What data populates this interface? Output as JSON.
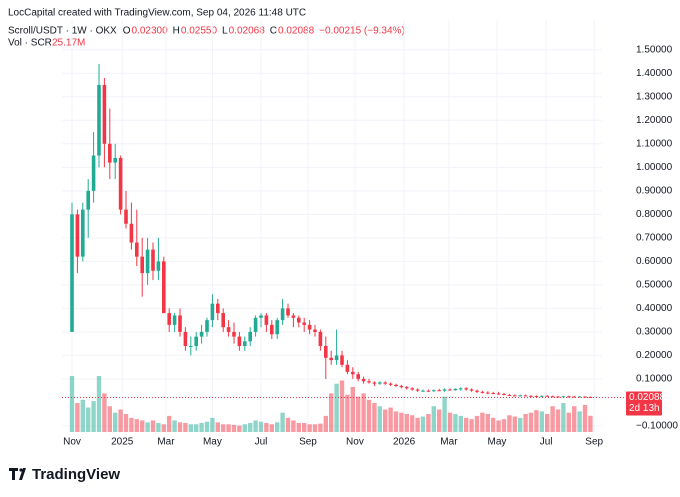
{
  "header": {
    "credit": "LocCapital created with TradingView.com, Sep 04, 2026 11:48 UTC",
    "symbol": "Scroll/USDT · 1W · OKX",
    "ohlc": [
      {
        "label": "O",
        "value": "0.02300"
      },
      {
        "label": "H",
        "value": "0.02550"
      },
      {
        "label": "L",
        "value": "0.02068"
      },
      {
        "label": "C",
        "value": "0.02088"
      }
    ],
    "change": "−0.00215 (−9.34%)",
    "volume_label": "Vol · SCR",
    "volume_value": "25.17M"
  },
  "chart_data": {
    "type": "candlestick",
    "up_color": "#22ab94",
    "down_color": "#f23645",
    "ohlc": [
      [
        0.3,
        0.85,
        0.3,
        0.8
      ],
      [
        0.8,
        0.82,
        0.55,
        0.62
      ],
      [
        0.62,
        0.85,
        0.6,
        0.82
      ],
      [
        0.82,
        0.95,
        0.7,
        0.9
      ],
      [
        0.9,
        1.15,
        0.85,
        1.05
      ],
      [
        1.05,
        1.44,
        1.0,
        1.35
      ],
      [
        1.35,
        1.38,
        1.0,
        1.1
      ],
      [
        1.1,
        1.25,
        0.95,
        1.02
      ],
      [
        1.02,
        1.1,
        0.95,
        1.04
      ],
      [
        1.04,
        1.05,
        0.8,
        0.82
      ],
      [
        0.82,
        0.9,
        0.74,
        0.76
      ],
      [
        0.76,
        0.85,
        0.65,
        0.68
      ],
      [
        0.68,
        0.82,
        0.58,
        0.62
      ],
      [
        0.62,
        0.7,
        0.45,
        0.55
      ],
      [
        0.55,
        0.7,
        0.5,
        0.65
      ],
      [
        0.65,
        0.68,
        0.52,
        0.56
      ],
      [
        0.56,
        0.7,
        0.52,
        0.6
      ],
      [
        0.6,
        0.62,
        0.38,
        0.38
      ],
      [
        0.38,
        0.4,
        0.3,
        0.33
      ],
      [
        0.33,
        0.38,
        0.3,
        0.37
      ],
      [
        0.37,
        0.4,
        0.28,
        0.3
      ],
      [
        0.3,
        0.32,
        0.22,
        0.24
      ],
      [
        0.24,
        0.28,
        0.2,
        0.24
      ],
      [
        0.24,
        0.3,
        0.22,
        0.28
      ],
      [
        0.28,
        0.33,
        0.25,
        0.3
      ],
      [
        0.3,
        0.36,
        0.28,
        0.35
      ],
      [
        0.35,
        0.46,
        0.32,
        0.42
      ],
      [
        0.42,
        0.44,
        0.35,
        0.38
      ],
      [
        0.38,
        0.4,
        0.3,
        0.32
      ],
      [
        0.32,
        0.35,
        0.28,
        0.3
      ],
      [
        0.3,
        0.34,
        0.25,
        0.28
      ],
      [
        0.28,
        0.3,
        0.22,
        0.24
      ],
      [
        0.24,
        0.28,
        0.22,
        0.26
      ],
      [
        0.26,
        0.32,
        0.24,
        0.3
      ],
      [
        0.3,
        0.37,
        0.28,
        0.36
      ],
      [
        0.36,
        0.38,
        0.32,
        0.37
      ],
      [
        0.37,
        0.38,
        0.3,
        0.33
      ],
      [
        0.33,
        0.35,
        0.27,
        0.29
      ],
      [
        0.29,
        0.36,
        0.27,
        0.35
      ],
      [
        0.35,
        0.44,
        0.33,
        0.4
      ],
      [
        0.4,
        0.42,
        0.36,
        0.37
      ],
      [
        0.37,
        0.38,
        0.32,
        0.36
      ],
      [
        0.36,
        0.37,
        0.32,
        0.34
      ],
      [
        0.34,
        0.36,
        0.3,
        0.33
      ],
      [
        0.33,
        0.35,
        0.29,
        0.31
      ],
      [
        0.31,
        0.33,
        0.28,
        0.3
      ],
      [
        0.3,
        0.31,
        0.22,
        0.24
      ],
      [
        0.24,
        0.28,
        0.1,
        0.19
      ],
      [
        0.19,
        0.22,
        0.16,
        0.18
      ],
      [
        0.18,
        0.31,
        0.16,
        0.2
      ],
      [
        0.2,
        0.22,
        0.15,
        0.16
      ],
      [
        0.16,
        0.18,
        0.12,
        0.13
      ],
      [
        0.13,
        0.15,
        0.1,
        0.12
      ],
      [
        0.12,
        0.13,
        0.09,
        0.1
      ],
      [
        0.1,
        0.11,
        0.08,
        0.09
      ],
      [
        0.09,
        0.1,
        0.08,
        0.085
      ],
      [
        0.085,
        0.09,
        0.07,
        0.08
      ],
      [
        0.08,
        0.09,
        0.075,
        0.085
      ],
      [
        0.085,
        0.09,
        0.075,
        0.08
      ],
      [
        0.08,
        0.085,
        0.07,
        0.075
      ],
      [
        0.075,
        0.08,
        0.065,
        0.07
      ],
      [
        0.07,
        0.075,
        0.06,
        0.065
      ],
      [
        0.065,
        0.07,
        0.055,
        0.06
      ],
      [
        0.06,
        0.065,
        0.05,
        0.055
      ],
      [
        0.055,
        0.06,
        0.045,
        0.05
      ],
      [
        0.05,
        0.055,
        0.045,
        0.05
      ],
      [
        0.05,
        0.055,
        0.045,
        0.048
      ],
      [
        0.048,
        0.055,
        0.045,
        0.052
      ],
      [
        0.052,
        0.058,
        0.048,
        0.05
      ],
      [
        0.05,
        0.06,
        0.045,
        0.055
      ],
      [
        0.055,
        0.06,
        0.05,
        0.052
      ],
      [
        0.052,
        0.06,
        0.05,
        0.058
      ],
      [
        0.058,
        0.065,
        0.05,
        0.06
      ],
      [
        0.06,
        0.065,
        0.05,
        0.055
      ],
      [
        0.055,
        0.06,
        0.045,
        0.05
      ],
      [
        0.05,
        0.055,
        0.04,
        0.045
      ],
      [
        0.045,
        0.05,
        0.038,
        0.042
      ],
      [
        0.042,
        0.048,
        0.035,
        0.04
      ],
      [
        0.04,
        0.045,
        0.035,
        0.038
      ],
      [
        0.038,
        0.045,
        0.032,
        0.036
      ],
      [
        0.036,
        0.04,
        0.03,
        0.032
      ],
      [
        0.032,
        0.036,
        0.028,
        0.03
      ],
      [
        0.03,
        0.034,
        0.027,
        0.029
      ],
      [
        0.029,
        0.033,
        0.026,
        0.03
      ],
      [
        0.03,
        0.034,
        0.027,
        0.028
      ],
      [
        0.028,
        0.031,
        0.025,
        0.027
      ],
      [
        0.027,
        0.03,
        0.024,
        0.026
      ],
      [
        0.026,
        0.03,
        0.024,
        0.028
      ],
      [
        0.028,
        0.031,
        0.025,
        0.026
      ],
      [
        0.026,
        0.029,
        0.023,
        0.025
      ],
      [
        0.025,
        0.028,
        0.023,
        0.024
      ],
      [
        0.024,
        0.028,
        0.022,
        0.026
      ],
      [
        0.026,
        0.029,
        0.023,
        0.025
      ],
      [
        0.025,
        0.028,
        0.022,
        0.024
      ],
      [
        0.024,
        0.027,
        0.022,
        0.025
      ],
      [
        0.025,
        0.027,
        0.021,
        0.023
      ],
      [
        0.023,
        0.0255,
        0.02068,
        0.02088
      ]
    ],
    "volume": [
      87,
      45,
      50,
      38,
      48,
      87,
      60,
      40,
      30,
      35,
      28,
      22,
      20,
      18,
      15,
      18,
      14,
      12,
      25,
      18,
      15,
      14,
      12,
      12,
      14,
      16,
      22,
      15,
      12,
      12,
      11,
      10,
      12,
      14,
      18,
      16,
      14,
      12,
      15,
      30,
      22,
      18,
      14,
      14,
      12,
      12,
      13,
      25,
      60,
      75,
      80,
      58,
      70,
      55,
      60,
      50,
      45,
      40,
      35,
      38,
      32,
      30,
      28,
      26,
      22,
      24,
      28,
      40,
      35,
      55,
      30,
      28,
      25,
      22,
      20,
      25,
      30,
      28,
      22,
      18,
      20,
      26,
      24,
      22,
      28,
      30,
      34,
      32,
      28,
      40,
      35,
      45,
      30,
      40,
      32,
      42,
      25.17
    ],
    "last_price": {
      "value": 0.02088,
      "label": "0.02088"
    },
    "last_volume_label": "25.17M",
    "countdown": "2d 13h",
    "ylim": [
      -0.13,
      1.55
    ],
    "yticks": [
      {
        "value": 1.5,
        "label": "1.50000"
      },
      {
        "value": 1.4,
        "label": "1.40000"
      },
      {
        "value": 1.3,
        "label": "1.30000"
      },
      {
        "value": 1.2,
        "label": "1.20000"
      },
      {
        "value": 1.1,
        "label": "1.10000"
      },
      {
        "value": 1.0,
        "label": "1.00000"
      },
      {
        "value": 0.9,
        "label": "0.90000"
      },
      {
        "value": 0.8,
        "label": "0.80000"
      },
      {
        "value": 0.7,
        "label": "0.70000"
      },
      {
        "value": 0.6,
        "label": "0.60000"
      },
      {
        "value": 0.5,
        "label": "0.50000"
      },
      {
        "value": 0.4,
        "label": "0.40000"
      },
      {
        "value": 0.3,
        "label": "0.30000"
      },
      {
        "value": 0.2,
        "label": "0.20000"
      },
      {
        "value": 0.1,
        "label": "0.10000"
      },
      {
        "value": -0.1,
        "label": "−0.10000"
      }
    ],
    "xticks": [
      {
        "value": 0,
        "label": "Nov"
      },
      {
        "value": 9.3,
        "label": "2025"
      },
      {
        "value": 17.4,
        "label": "Mar"
      },
      {
        "value": 26,
        "label": "May"
      },
      {
        "value": 35,
        "label": "Jul"
      },
      {
        "value": 43.7,
        "label": "Sep"
      },
      {
        "value": 52.4,
        "label": "Nov"
      },
      {
        "value": 61.5,
        "label": "2026"
      },
      {
        "value": 69.8,
        "label": "Mar"
      },
      {
        "value": 78.7,
        "label": "May"
      },
      {
        "value": 87.8,
        "label": "Jul"
      },
      {
        "value": 96.7,
        "label": "Sep"
      }
    ],
    "grid": true,
    "brand": "TradingView"
  }
}
